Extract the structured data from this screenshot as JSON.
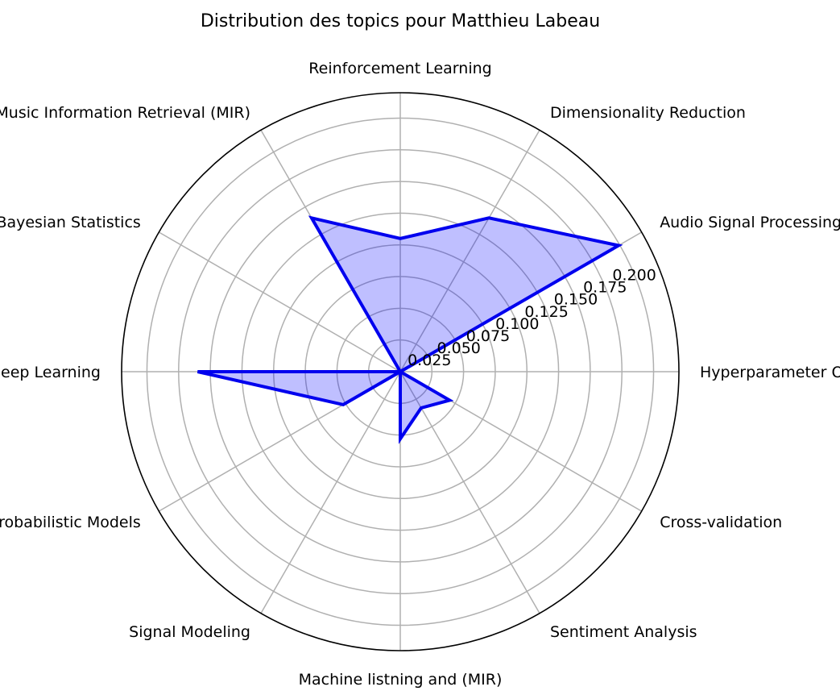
{
  "chart_data": {
    "type": "radar",
    "title": "Distribution des topics pour Matthieu Labeau",
    "categories": [
      "Hyperparameter Optimization",
      "Audio Signal Processing",
      "Dimensionality Reduction",
      "Reinforcement Learning",
      "Machine Listening and Music Information Retrieval (MIR)",
      "Bayesian Statistics",
      "Deep Learning",
      "Probabilistic Models",
      "Signal Modeling",
      "Machine listning and (MIR)",
      "Sentiment Analysis",
      "Cross-validation"
    ],
    "series": [
      {
        "values": [
          0.0,
          0.199,
          0.14,
          0.105,
          0.14,
          0.0,
          0.16,
          0.052,
          0.0,
          0.053,
          0.033,
          0.045
        ]
      }
    ],
    "rlim": [
      0,
      0.22
    ],
    "r_ticks": [
      0.025,
      0.05,
      0.075,
      0.1,
      0.125,
      0.15,
      0.175,
      0.2
    ],
    "r_tick_labels": [
      "0.025",
      "0.050",
      "0.075",
      "0.100",
      "0.125",
      "0.150",
      "0.175",
      "0.200"
    ],
    "grid": true,
    "colors": {
      "line": "#0000ee",
      "fill": "#0000ff",
      "grid": "#b0b0b0",
      "frame": "#000000"
    }
  }
}
